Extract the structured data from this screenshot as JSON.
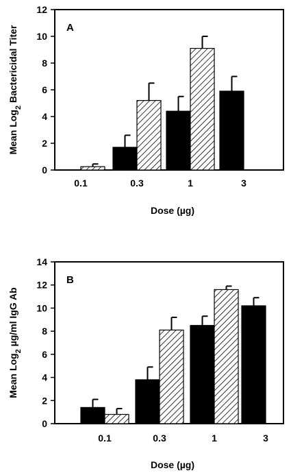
{
  "chart_data": [
    {
      "type": "bar",
      "panel_label": "A",
      "categories": [
        "0.1",
        "0.3",
        "1",
        "3"
      ],
      "xlabel": "Dose (µg)",
      "ylabel_prefix": "Mean Log",
      "ylabel_sub": "2",
      "ylabel_suffix": " Bactericidal Titer",
      "ylim": [
        0,
        12
      ],
      "yticks": [
        0,
        2,
        4,
        6,
        8,
        10,
        12
      ],
      "series": [
        {
          "style": "solid",
          "color": "#000000",
          "values": [
            0,
            1.7,
            4.4,
            5.9
          ],
          "errors": [
            0,
            0.9,
            1.1,
            1.1
          ]
        },
        {
          "style": "hatched",
          "color": "#000000",
          "values": [
            0.25,
            5.2,
            9.1,
            null
          ],
          "errors": [
            0.2,
            1.3,
            0.9,
            null
          ]
        }
      ]
    },
    {
      "type": "bar",
      "panel_label": "B",
      "categories": [
        "0.1",
        "0.3",
        "1",
        "3"
      ],
      "xlabel": "Dose (µg)",
      "ylabel_prefix": "Mean Log",
      "ylabel_sub": "2",
      "ylabel_suffix": " µg/ml IgG Ab",
      "ylim": [
        0,
        14
      ],
      "yticks": [
        0,
        2,
        4,
        6,
        8,
        10,
        12,
        14
      ],
      "series": [
        {
          "style": "solid",
          "color": "#000000",
          "values": [
            1.4,
            3.8,
            8.5,
            10.2
          ],
          "errors": [
            0.7,
            1.1,
            0.8,
            0.7
          ]
        },
        {
          "style": "hatched",
          "color": "#000000",
          "values": [
            0.8,
            8.1,
            11.6,
            null
          ],
          "errors": [
            0.5,
            1.1,
            0.3,
            null
          ]
        }
      ]
    }
  ]
}
